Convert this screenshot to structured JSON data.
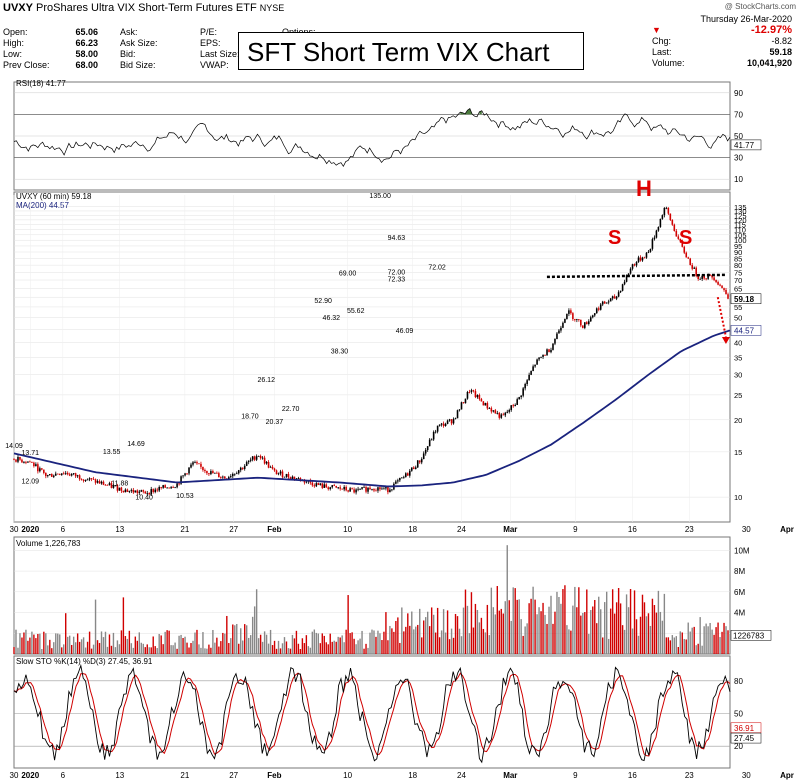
{
  "header": {
    "symbol": "UVXY",
    "description": "ProShares Ultra VIX Short-Term Futures ETF",
    "exchange": "NYSE",
    "watermark": "@ StockCharts.com",
    "date": "Thursday 26-Mar-2020",
    "open_label": "Open:",
    "open": "65.06",
    "high_label": "High:",
    "high": "66.23",
    "low_label": "Low:",
    "low": "58.00",
    "prev_label": "Prev Close:",
    "prev": "68.00",
    "ask_label": "Ask:",
    "asksize_label": "Ask Size:",
    "bid_label": "Bid:",
    "bidsize_label": "Bid Size:",
    "pe_label": "P/E:",
    "eps_label": "EPS:",
    "lastsize_label": "Last Size:",
    "vwap_label": "VWAP:",
    "options_label": "Options:",
    "pct_change": "-12.97%",
    "chg_label": "Chg:",
    "chg": "-8.82",
    "last_label": "Last:",
    "last": "59.18",
    "volume_label": "Volume:",
    "volume": "10,041,920",
    "overlay_title": "SFT Short Term VIX Chart"
  },
  "colors": {
    "ma": "#1a237e",
    "up": "#000000",
    "down": "#d00000",
    "rsi_fill": "#4a7a3c",
    "annot": "#e00000"
  },
  "chart_data": [
    {
      "type": "line",
      "panel": "rsi",
      "title": "RSI(18) 41.77",
      "yticks": [
        10,
        30,
        50,
        70,
        90
      ],
      "ylim": [
        0,
        100
      ],
      "last_value_label": "41.77",
      "overbought": 70,
      "oversold": 30
    },
    {
      "type": "candlestick",
      "panel": "price",
      "title": "UVXY (60 min) 59.18",
      "ma_label": "MA(200) 44.57",
      "yscale": "log",
      "yticks": [
        10,
        15,
        20,
        25,
        30,
        35,
        40,
        45,
        50,
        55,
        60,
        65,
        70,
        75,
        80,
        85,
        90,
        95,
        100,
        105,
        110,
        115,
        120,
        125,
        130,
        135
      ],
      "ylim": [
        8,
        150
      ],
      "last_label": "59.18",
      "ma_last_label": "44.57",
      "xticks": [
        "30",
        "2020",
        "6",
        "13",
        "21",
        "27",
        "Feb",
        "10",
        "18",
        "24",
        "Mar",
        "9",
        "16",
        "23",
        "30",
        "Apr"
      ],
      "price_path_days": [
        0,
        2,
        4,
        6,
        8,
        10,
        12,
        14,
        16,
        18,
        20,
        22,
        24,
        26,
        28,
        30,
        32,
        34,
        36,
        38,
        40,
        42,
        44,
        46,
        48,
        50,
        52,
        54,
        56,
        58,
        60,
        62,
        64,
        66,
        68,
        70,
        72,
        74,
        76,
        78,
        80,
        82,
        84,
        86,
        88
      ],
      "price_path_values": [
        14.09,
        13.71,
        12.09,
        12.5,
        12.0,
        11.5,
        11.0,
        10.6,
        10.4,
        10.8,
        11.2,
        13.55,
        12.5,
        11.88,
        13.0,
        14.69,
        12.5,
        12.0,
        11.5,
        11.0,
        10.8,
        10.53,
        10.9,
        10.7,
        12.0,
        14.0,
        18.7,
        20.0,
        26.12,
        22.7,
        20.37,
        24.0,
        33.0,
        38.3,
        52.9,
        46.32,
        55.62,
        60.0,
        80.0,
        90.0,
        135.0,
        94.63,
        72.33,
        72.02,
        59.18
      ],
      "ma_days": [
        0,
        10,
        20,
        30,
        40,
        46,
        50,
        54,
        58,
        62,
        66,
        70,
        74,
        78,
        82,
        86,
        88
      ],
      "ma_values": [
        14.8,
        12.5,
        11.4,
        11.9,
        11.4,
        11.0,
        11.1,
        11.4,
        12.2,
        13.8,
        16.0,
        19.5,
        24.0,
        30.0,
        37.0,
        42.5,
        44.57
      ],
      "annotations": [
        "14.09",
        "13.71",
        "12.09",
        "13.55",
        "10.40",
        "11.88",
        "14.69",
        "10.53",
        "18.70",
        "26.12",
        "22.70",
        "20.37",
        "52.90",
        "46.32",
        "38.30",
        "55.62",
        "69.00",
        "72.00",
        "135.00",
        "94.63",
        "72.33",
        "72.02",
        "46.09"
      ],
      "pattern_labels": [
        "S",
        "H",
        "S"
      ],
      "neckline": 72
    },
    {
      "type": "bar",
      "panel": "volume",
      "title": "Volume 1,226,783",
      "yticks": [
        "2M",
        "4M",
        "6M",
        "8M",
        "10M"
      ],
      "last_label": "1226783"
    },
    {
      "type": "line",
      "panel": "stochastic",
      "title": "Slow STO %K(14) %D(3) 27.45, 36.91",
      "yticks": [
        20,
        50,
        80
      ],
      "ylim": [
        0,
        100
      ],
      "k_last": "27.45",
      "d_last": "36.91"
    }
  ]
}
